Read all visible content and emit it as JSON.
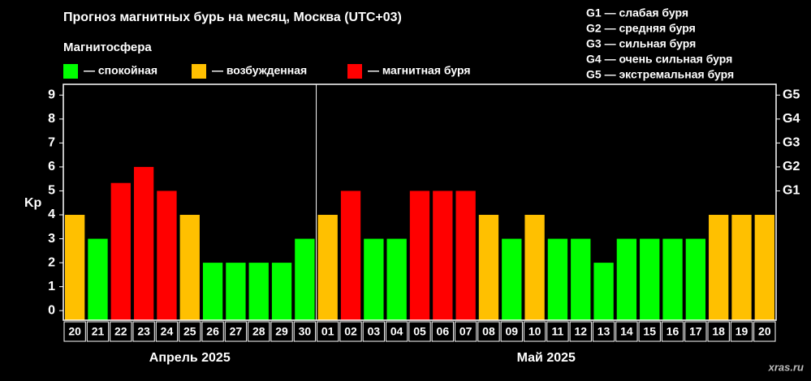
{
  "chart_data": {
    "type": "bar",
    "title": "Прогноз магнитных бурь на месяц, Москва (UTC+03)",
    "legend_title": "Магнитосфера",
    "legend": [
      {
        "label": "— спокойная",
        "color": "#00ff00"
      },
      {
        "label": "— возбужденная",
        "color": "#ffc000"
      },
      {
        "label": "— магнитная буря",
        "color": "#ff0000"
      }
    ],
    "scale_legend": [
      "G1 — слабая буря",
      "G2 — средняя буря",
      "G3 — сильная буря",
      "G4 — очень сильная буря",
      "G5 — экстремальная буря"
    ],
    "y_label": "Kp",
    "categories": [
      "20",
      "21",
      "22",
      "23",
      "24",
      "25",
      "26",
      "27",
      "28",
      "29",
      "30",
      "01",
      "02",
      "03",
      "04",
      "05",
      "06",
      "07",
      "08",
      "09",
      "10",
      "11",
      "12",
      "13",
      "14",
      "15",
      "16",
      "17",
      "18",
      "19",
      "20"
    ],
    "groups": [
      "Апрель 2025",
      "Май 2025"
    ],
    "values": [
      4,
      3,
      5.33,
      6,
      5,
      4,
      2,
      2,
      2,
      2,
      3,
      4,
      5,
      3,
      3,
      5,
      5,
      5,
      4,
      3,
      4,
      3,
      3,
      2,
      3,
      3,
      3,
      3,
      4,
      4,
      4
    ],
    "colors": [
      "#ffc000",
      "#00ff00",
      "#ff0000",
      "#ff0000",
      "#ff0000",
      "#ffc000",
      "#00ff00",
      "#00ff00",
      "#00ff00",
      "#00ff00",
      "#00ff00",
      "#ffc000",
      "#ff0000",
      "#00ff00",
      "#00ff00",
      "#ff0000",
      "#ff0000",
      "#ff0000",
      "#ffc000",
      "#00ff00",
      "#ffc000",
      "#00ff00",
      "#00ff00",
      "#00ff00",
      "#00ff00",
      "#00ff00",
      "#00ff00",
      "#00ff00",
      "#ffc000",
      "#ffc000",
      "#ffc000"
    ],
    "ylim": [
      -0.4,
      9.45
    ],
    "yticks": [
      0,
      1,
      2,
      3,
      4,
      5,
      6,
      7,
      8,
      9
    ],
    "y2lim": [
      -0.4,
      9.45
    ],
    "y2ticks": [
      {
        "value": 5,
        "label": "G1"
      },
      {
        "value": 6,
        "label": "G2"
      },
      {
        "value": 7,
        "label": "G3"
      },
      {
        "value": 8,
        "label": "G4"
      },
      {
        "value": 9,
        "label": "G5"
      }
    ],
    "watermark": "xras.ru"
  }
}
